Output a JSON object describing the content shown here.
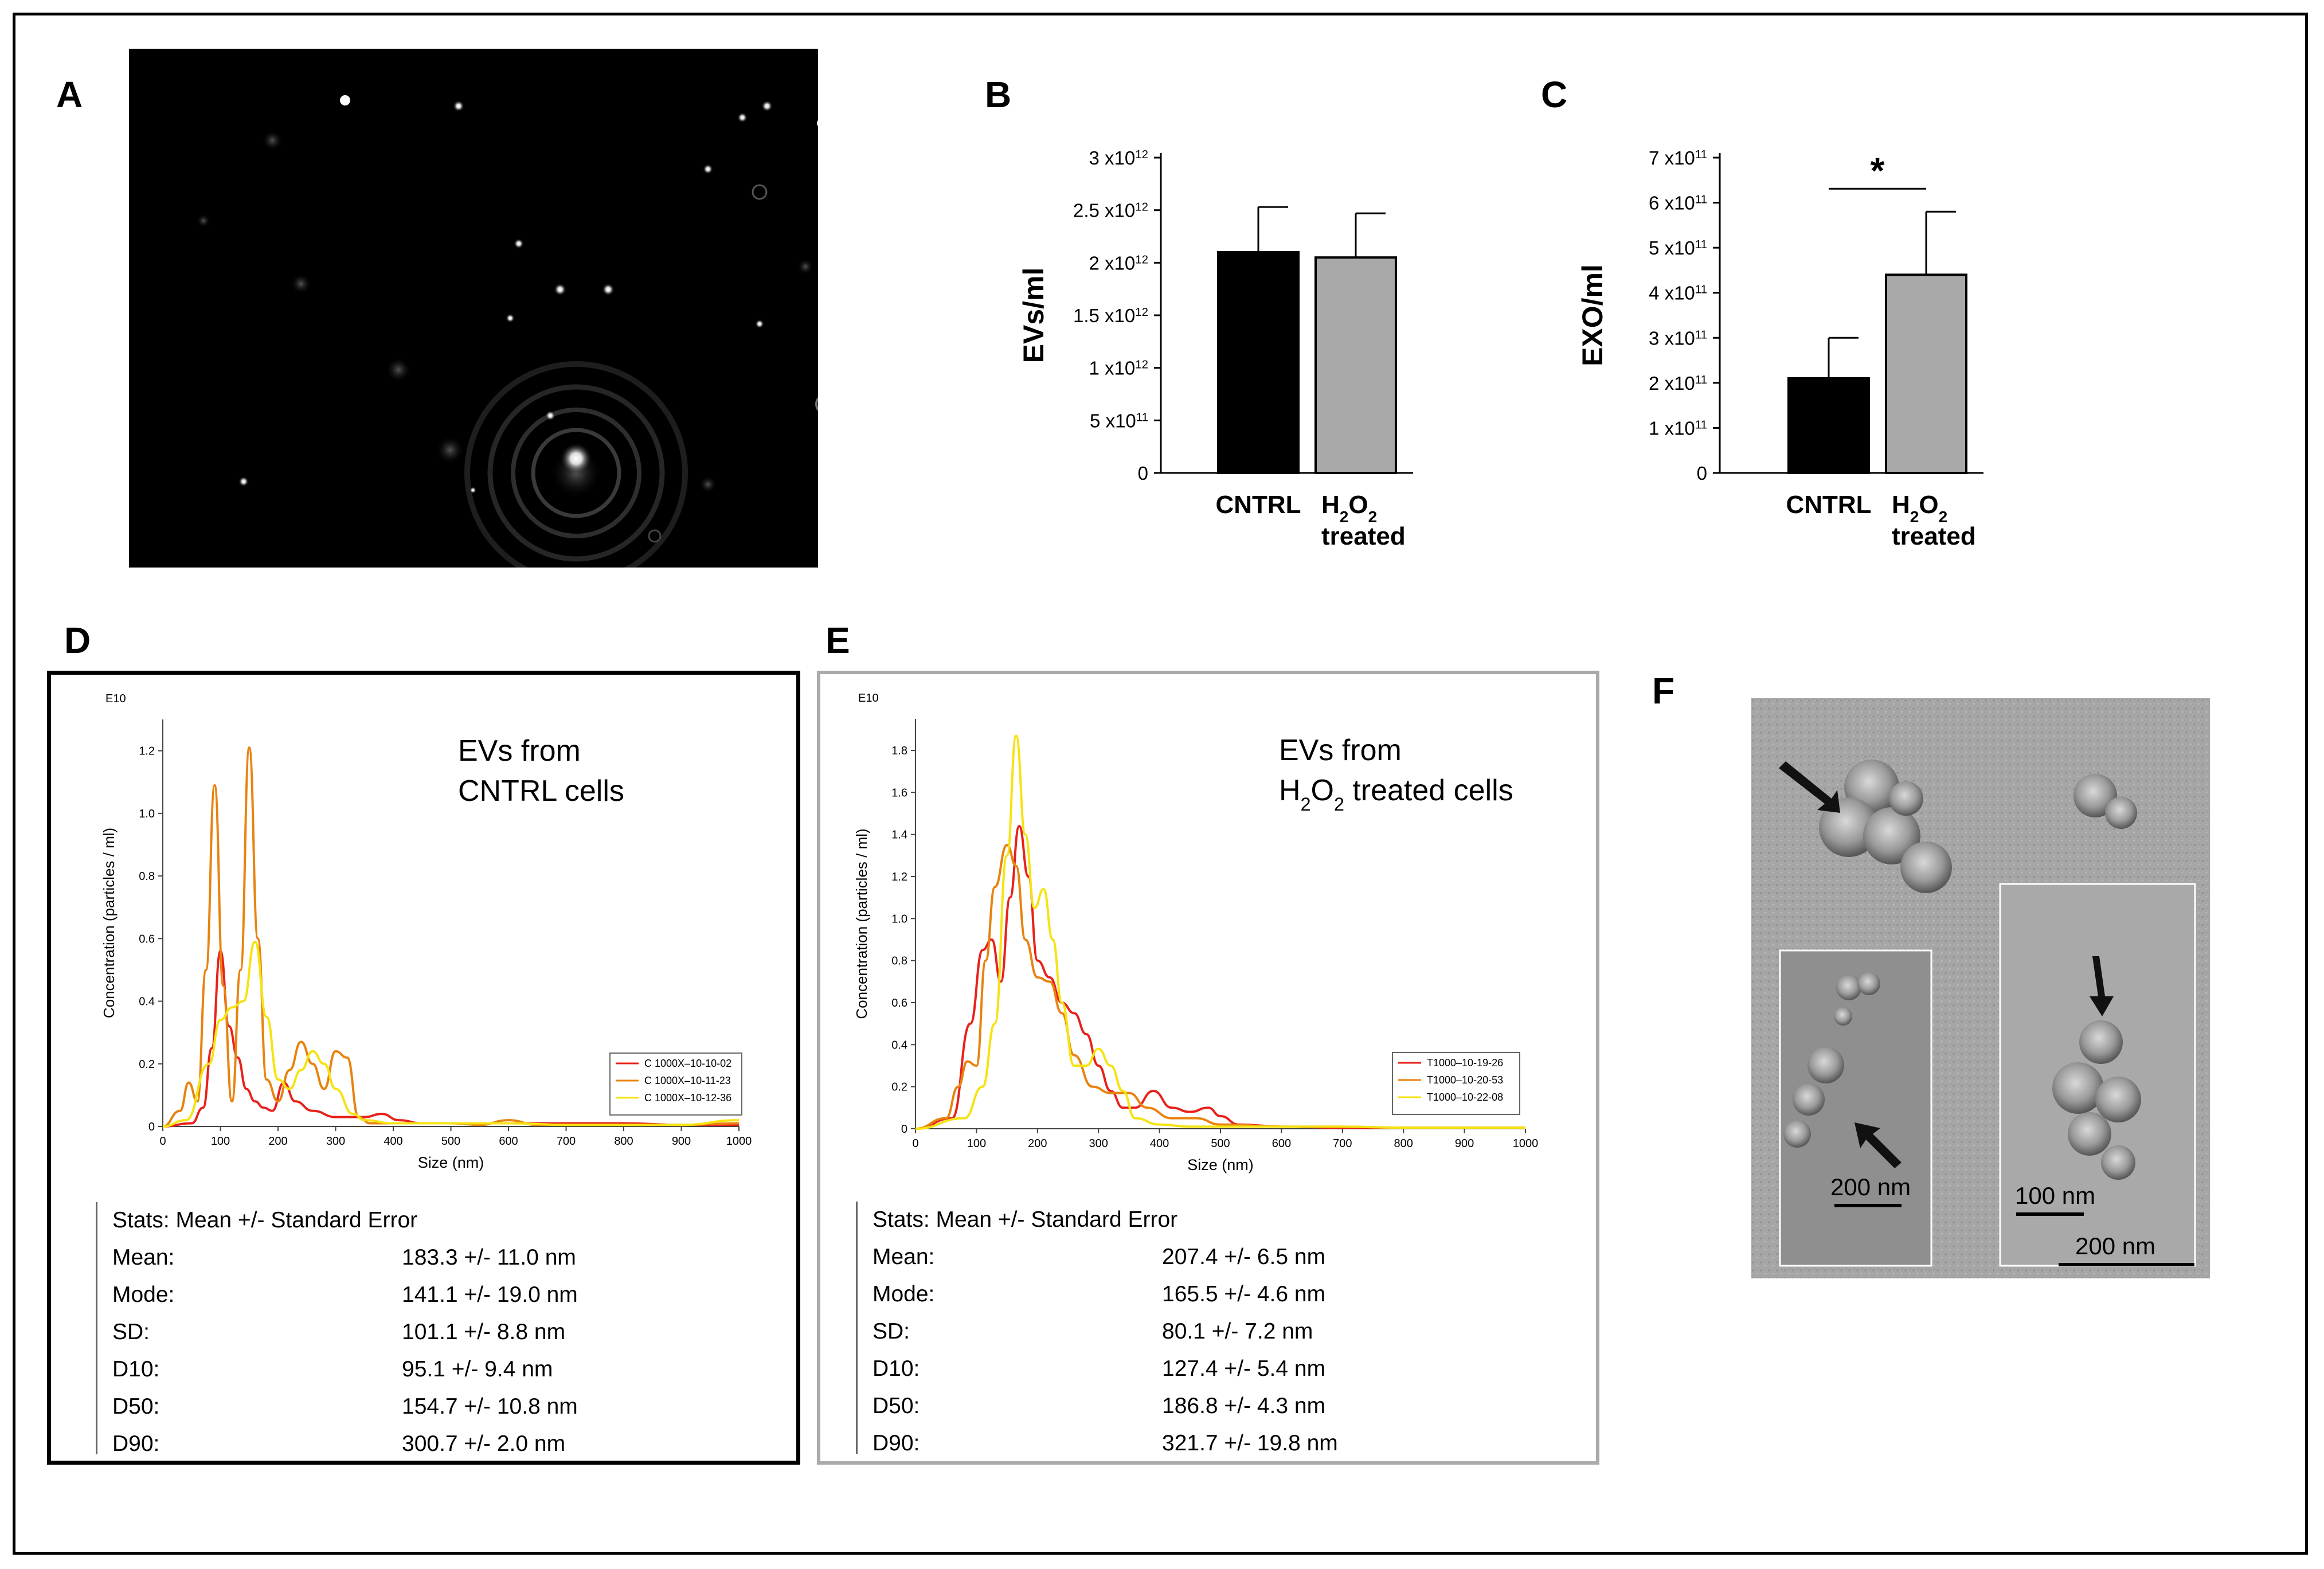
{
  "panels": {
    "A": {
      "label": "A"
    },
    "B": {
      "label": "B"
    },
    "C": {
      "label": "C"
    },
    "D": {
      "label": "D"
    },
    "E": {
      "label": "E"
    },
    "F": {
      "label": "F"
    }
  },
  "colors": {
    "run1": "#e8211b",
    "run2": "#e8830f",
    "run3": "#f5e313",
    "cntrl_bar": "#000000",
    "treated_bar": "#a9a9a9"
  },
  "chart_data": [
    {
      "id": "B",
      "type": "bar",
      "ylabel": "EVs/ml",
      "categories": [
        "CNTRL",
        "H2O2 treated"
      ],
      "category_lines": [
        [
          "CNTRL"
        ],
        [
          "H",
          "2",
          "O",
          "2",
          "treated"
        ]
      ],
      "values": [
        2100000000000.0,
        2050000000000.0
      ],
      "errors": [
        430000000000.0,
        420000000000.0
      ],
      "ylim": [
        0,
        3000000000000.0
      ],
      "ticks": [
        {
          "v": 0,
          "label": "0"
        },
        {
          "v": 500000000000.0,
          "m": "5 x10",
          "e": "11"
        },
        {
          "v": 1000000000000.0,
          "m": "1 x10",
          "e": "12"
        },
        {
          "v": 1500000000000.0,
          "m": "1.5 x10",
          "e": "12"
        },
        {
          "v": 2000000000000.0,
          "m": "2 x10",
          "e": "12"
        },
        {
          "v": 2500000000000.0,
          "m": "2.5 x10",
          "e": "12"
        },
        {
          "v": 3000000000000.0,
          "m": "3 x10",
          "e": "12"
        }
      ]
    },
    {
      "id": "C",
      "type": "bar",
      "ylabel": "EXO/ml",
      "categories": [
        "CNTRL",
        "H2O2 treated"
      ],
      "values": [
        210000000000.0,
        440000000000.0
      ],
      "errors": [
        90000000000.0,
        140000000000.0
      ],
      "ylim": [
        0,
        700000000000.0
      ],
      "significance": "*",
      "ticks": [
        {
          "v": 0,
          "label": "0"
        },
        {
          "v": 100000000000.0,
          "m": "1 x10",
          "e": "11"
        },
        {
          "v": 200000000000.0,
          "m": "2 x10",
          "e": "11"
        },
        {
          "v": 300000000000.0,
          "m": "3 x10",
          "e": "11"
        },
        {
          "v": 400000000000.0,
          "m": "4 x10",
          "e": "11"
        },
        {
          "v": 500000000000.0,
          "m": "5 x10",
          "e": "11"
        },
        {
          "v": 600000000000.0,
          "m": "6 x10",
          "e": "11"
        },
        {
          "v": 700000000000.0,
          "m": "7 x10",
          "e": "11"
        }
      ]
    },
    {
      "id": "D",
      "type": "line",
      "title_lines": [
        "EVs from",
        "CNTRL cells"
      ],
      "xlabel": "Size (nm)",
      "ylabel": "Concentration (particles / ml)",
      "yscale_label": "E10",
      "xlim": [
        0,
        1000
      ],
      "ylim": [
        0,
        1.3
      ],
      "xticks": [
        0,
        100,
        200,
        300,
        400,
        500,
        600,
        700,
        800,
        900,
        1000
      ],
      "yticks": [
        0,
        0.2,
        0.4,
        0.6,
        0.8,
        1.0,
        1.2
      ],
      "ytick_labels": [
        "0",
        "0.2",
        "0.4",
        "0.6",
        "0.8",
        "1.0",
        "1.2"
      ],
      "series": [
        {
          "name": "C 1000X–10-10-02",
          "color": "#e8211b",
          "x": [
            0,
            50,
            70,
            85,
            100,
            115,
            130,
            145,
            160,
            175,
            190,
            210,
            230,
            260,
            300,
            350,
            380,
            410,
            450,
            500,
            600,
            700,
            800,
            900,
            1000
          ],
          "y": [
            0,
            0.01,
            0.06,
            0.25,
            0.56,
            0.32,
            0.22,
            0.12,
            0.08,
            0.06,
            0.05,
            0.14,
            0.08,
            0.05,
            0.03,
            0.03,
            0.04,
            0.02,
            0.01,
            0.01,
            0.01,
            0.01,
            0.01,
            0.005,
            0.005
          ]
        },
        {
          "name": "C 1000X–10-11-23",
          "color": "#e8830f",
          "x": [
            0,
            30,
            45,
            60,
            75,
            90,
            105,
            120,
            135,
            150,
            165,
            180,
            200,
            220,
            240,
            260,
            280,
            300,
            320,
            340,
            360,
            400,
            450,
            500,
            550,
            600,
            650,
            700,
            800,
            900,
            1000
          ],
          "y": [
            0,
            0.05,
            0.14,
            0.08,
            0.5,
            1.09,
            0.45,
            0.08,
            0.5,
            1.21,
            0.6,
            0.15,
            0.08,
            0.18,
            0.27,
            0.2,
            0.12,
            0.24,
            0.22,
            0.03,
            0.01,
            0.01,
            0.01,
            0.01,
            0.005,
            0.02,
            0.005,
            0.005,
            0.005,
            0.005,
            0.01
          ]
        },
        {
          "name": "C 1000X–10-12-36",
          "color": "#f5e313",
          "x": [
            0,
            40,
            80,
            100,
            120,
            140,
            160,
            180,
            200,
            220,
            240,
            260,
            280,
            300,
            330,
            350,
            400,
            450,
            500,
            600,
            700,
            800,
            900,
            1000
          ],
          "y": [
            0,
            0.02,
            0.2,
            0.34,
            0.38,
            0.4,
            0.59,
            0.35,
            0.15,
            0.12,
            0.18,
            0.24,
            0.2,
            0.12,
            0.04,
            0.02,
            0.01,
            0.01,
            0.01,
            0.01,
            0.005,
            0.005,
            0.005,
            0.02
          ]
        }
      ]
    },
    {
      "id": "E",
      "type": "line",
      "title_lines": [
        "EVs from",
        "H2O2 treated cells"
      ],
      "xlabel": "Size (nm)",
      "ylabel": "Concentration (particles / ml)",
      "yscale_label": "E10",
      "xlim": [
        0,
        1000
      ],
      "ylim": [
        0,
        1.95
      ],
      "xticks": [
        0,
        100,
        200,
        300,
        400,
        500,
        600,
        700,
        800,
        900,
        1000
      ],
      "yticks": [
        0,
        0.2,
        0.4,
        0.6,
        0.8,
        1.0,
        1.2,
        1.4,
        1.6,
        1.8
      ],
      "ytick_labels": [
        "0",
        "0.2",
        "0.4",
        "0.6",
        "0.8",
        "1.0",
        "1.2",
        "1.4",
        "1.6",
        "1.8"
      ],
      "series": [
        {
          "name": "T1000–10-19-26",
          "color": "#e8211b",
          "x": [
            0,
            60,
            90,
            110,
            125,
            140,
            155,
            170,
            185,
            200,
            220,
            240,
            260,
            280,
            300,
            320,
            340,
            360,
            390,
            420,
            450,
            480,
            500,
            530,
            600,
            700,
            1000
          ],
          "y": [
            0,
            0.05,
            0.5,
            0.85,
            0.9,
            0.7,
            1.1,
            1.44,
            1.2,
            0.8,
            0.72,
            0.6,
            0.55,
            0.45,
            0.3,
            0.18,
            0.1,
            0.1,
            0.18,
            0.1,
            0.08,
            0.1,
            0.06,
            0.02,
            0.01,
            0.005,
            0.005
          ]
        },
        {
          "name": "T1000–10-20-53",
          "color": "#e8830f",
          "x": [
            0,
            50,
            70,
            85,
            100,
            115,
            130,
            150,
            165,
            180,
            200,
            220,
            240,
            260,
            290,
            320,
            350,
            380,
            420,
            460,
            500,
            600,
            700,
            800,
            1000
          ],
          "y": [
            0,
            0.05,
            0.2,
            0.32,
            0.3,
            0.8,
            1.15,
            1.35,
            1.25,
            0.9,
            0.72,
            0.7,
            0.55,
            0.35,
            0.2,
            0.17,
            0.17,
            0.1,
            0.05,
            0.05,
            0.02,
            0.01,
            0.01,
            0.005,
            0.005
          ]
        },
        {
          "name": "T1000–10-22-08",
          "color": "#f5e313",
          "x": [
            0,
            80,
            110,
            130,
            150,
            165,
            180,
            195,
            210,
            225,
            240,
            260,
            280,
            300,
            320,
            340,
            360,
            400,
            450,
            500,
            600,
            700,
            800,
            1000
          ],
          "y": [
            0,
            0.05,
            0.2,
            0.5,
            1.3,
            1.87,
            1.4,
            1.05,
            1.14,
            0.9,
            0.6,
            0.3,
            0.3,
            0.38,
            0.3,
            0.18,
            0.05,
            0.02,
            0.01,
            0.01,
            0.01,
            0.01,
            0.005,
            0.005
          ]
        }
      ]
    }
  ],
  "stats_D": {
    "header": "Stats: Mean +/- Standard Error",
    "rows": [
      {
        "label": "Mean:",
        "value": "183.3 +/- 11.0 nm"
      },
      {
        "label": "Mode:",
        "value": "141.1 +/- 19.0 nm"
      },
      {
        "label": "SD:",
        "value": "101.1 +/- 8.8 nm"
      },
      {
        "label": "D10:",
        "value": "95.1 +/- 9.4 nm"
      },
      {
        "label": "D50:",
        "value": "154.7 +/- 10.8 nm"
      },
      {
        "label": "D90:",
        "value": "300.7 +/- 2.0 nm"
      }
    ]
  },
  "stats_E": {
    "header": "Stats: Mean +/- Standard Error",
    "rows": [
      {
        "label": "Mean:",
        "value": "207.4 +/- 6.5 nm"
      },
      {
        "label": "Mode:",
        "value": "165.5 +/- 4.6 nm"
      },
      {
        "label": "SD:",
        "value": "80.1 +/- 7.2 nm"
      },
      {
        "label": "D10:",
        "value": "127.4 +/- 5.4 nm"
      },
      {
        "label": "D50:",
        "value": "186.8 +/- 4.3 nm"
      },
      {
        "label": "D90:",
        "value": "321.7 +/- 19.8 nm"
      }
    ]
  },
  "tem": {
    "scale_inset_left": "200 nm",
    "scale_inset_right": "100 nm",
    "scale_main": "200 nm"
  }
}
